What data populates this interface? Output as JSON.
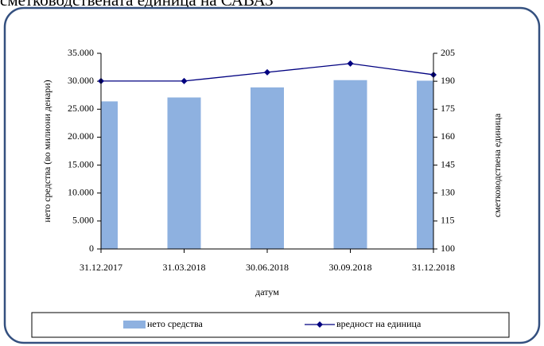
{
  "chart_data": {
    "type": "bar-line",
    "title": "сметководствената единица на САВАЗ",
    "xlabel": "датум",
    "ylabel": "нето средства (во милиони денари)",
    "y2label": "сметководствена единица",
    "categories": [
      "31.12.2017",
      "31.03.2018",
      "30.06.2018",
      "30.09.2018",
      "31.12.2018"
    ],
    "series": [
      {
        "name": "нето средства",
        "type": "bar",
        "axis": "y",
        "color": "#8eb1e0",
        "values": [
          26400,
          27100,
          28900,
          30200,
          30100
        ]
      },
      {
        "name": "вредност на единица",
        "type": "line",
        "axis": "y2",
        "color": "#000080",
        "values": [
          190.1,
          190.1,
          194.8,
          199.5,
          193.5
        ]
      }
    ],
    "ylim": [
      0,
      35000
    ],
    "yticks": [
      0,
      {
        "value": 5000,
        "label": "5.000"
      },
      {
        "value": 10000,
        "label": "10.000"
      },
      {
        "value": 15000,
        "label": "15.000"
      },
      {
        "value": 20000,
        "label": "20.000"
      },
      {
        "value": 25000,
        "label": "25.000"
      },
      {
        "value": 30000,
        "label": "30.000"
      },
      {
        "value": 35000,
        "label": "35.000"
      }
    ],
    "y2lim": [
      100,
      205
    ],
    "y2ticks": [
      100,
      115,
      130,
      145,
      160,
      175,
      190,
      205
    ],
    "grid": false,
    "legend": "bottom"
  }
}
